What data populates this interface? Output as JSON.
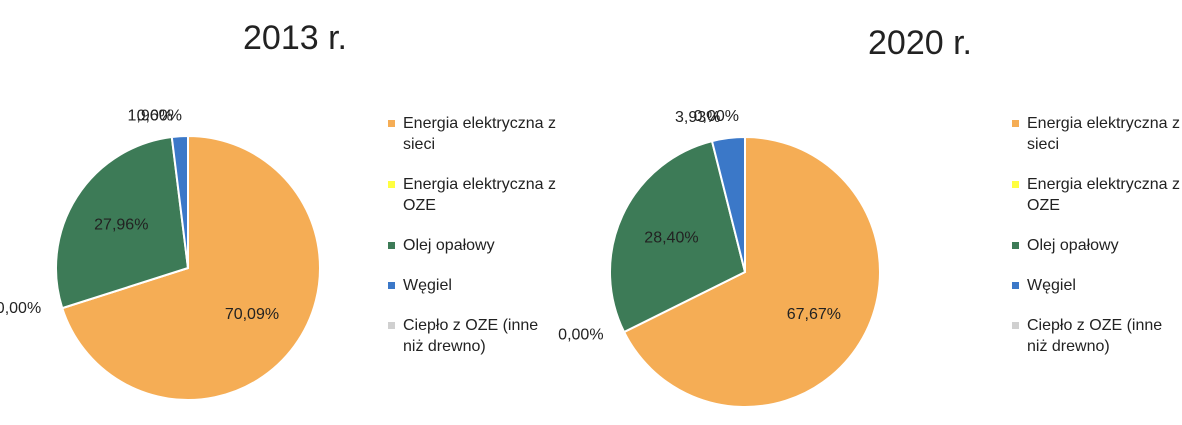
{
  "chart_data": [
    {
      "type": "pie",
      "title": "2013 r.",
      "categories": [
        "Energia elektryczna z sieci",
        "Energia elektryczna z OZE",
        "Olej opałowy",
        "Węgiel",
        "Ciepło z OZE (inne niż drewno)"
      ],
      "values": [
        70.09,
        0.0,
        27.96,
        1.96,
        0.0
      ],
      "value_labels": [
        "70,09%",
        "0,00%",
        "27,96%",
        "1,96%",
        "0,00%"
      ],
      "colors": [
        "#f5ad55",
        "#ffff40",
        "#3d7b57",
        "#3b78c8",
        "#d0d0d0"
      ]
    },
    {
      "type": "pie",
      "title": "2020 r.",
      "categories": [
        "Energia elektryczna z sieci",
        "Energia elektryczna z OZE",
        "Olej opałowy",
        "Węgiel",
        "Ciepło z OZE (inne niż drewno)"
      ],
      "values": [
        67.67,
        0.0,
        28.4,
        3.93,
        0.0
      ],
      "value_labels": [
        "67,67%",
        "0,00%",
        "28,40%",
        "3,93%",
        "0,00%"
      ],
      "colors": [
        "#f5ad55",
        "#ffff40",
        "#3d7b57",
        "#3b78c8",
        "#d0d0d0"
      ]
    }
  ]
}
